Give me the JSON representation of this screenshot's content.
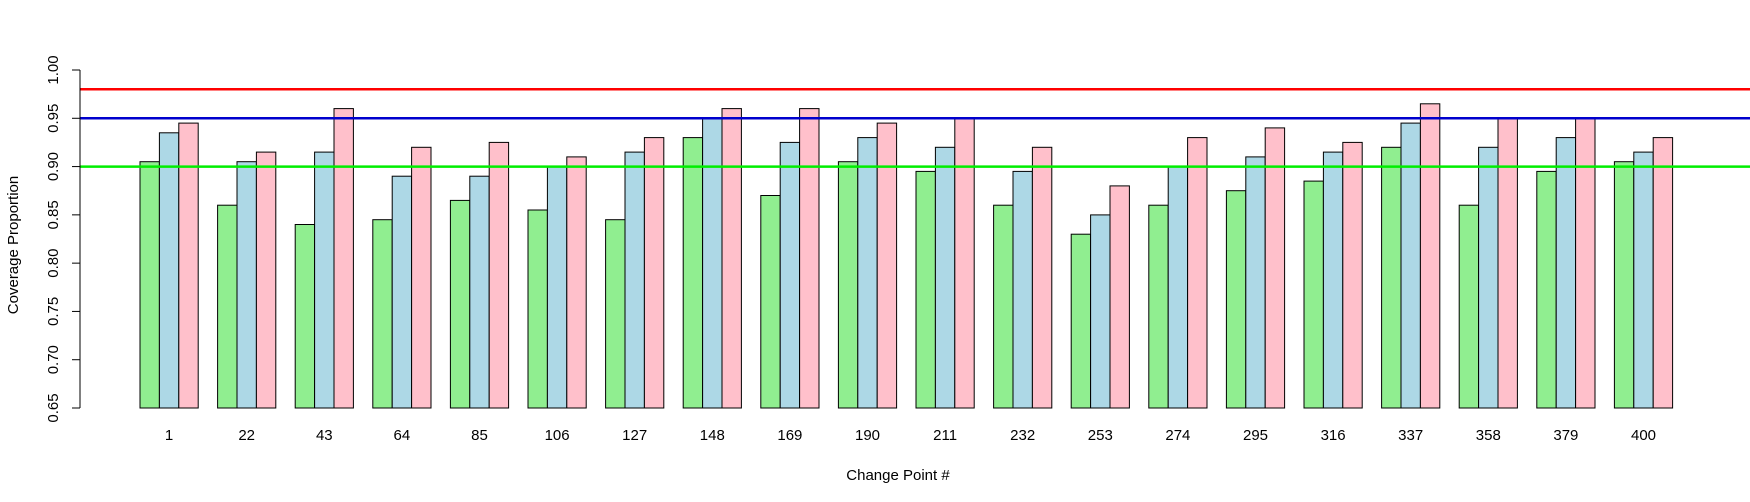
{
  "chart_data": {
    "type": "bar",
    "title": "",
    "xlabel": "Change Point #",
    "ylabel": "Coverage Proportion",
    "ylim": [
      0.65,
      1.0
    ],
    "yticks": [
      "0.65",
      "0.70",
      "0.75",
      "0.80",
      "0.85",
      "0.90",
      "0.95",
      "1.00"
    ],
    "categories": [
      "1",
      "22",
      "43",
      "64",
      "85",
      "106",
      "127",
      "148",
      "169",
      "190",
      "211",
      "232",
      "253",
      "274",
      "295",
      "316",
      "337",
      "358",
      "379",
      "400"
    ],
    "series": [
      {
        "color": "#90EE90",
        "values": [
          0.905,
          0.86,
          0.84,
          0.845,
          0.865,
          0.855,
          0.845,
          0.93,
          0.87,
          0.905,
          0.895,
          0.86,
          0.83,
          0.86,
          0.875,
          0.885,
          0.92,
          0.86,
          0.895,
          0.905
        ]
      },
      {
        "color": "#ADD8E6",
        "values": [
          0.935,
          0.905,
          0.915,
          0.89,
          0.89,
          0.9,
          0.915,
          0.95,
          0.925,
          0.93,
          0.92,
          0.895,
          0.85,
          0.9,
          0.91,
          0.915,
          0.945,
          0.92,
          0.93,
          0.915
        ]
      },
      {
        "color": "#FFC0CB",
        "values": [
          0.945,
          0.915,
          0.96,
          0.92,
          0.925,
          0.91,
          0.93,
          0.96,
          0.96,
          0.945,
          0.95,
          0.92,
          0.88,
          0.93,
          0.94,
          0.925,
          0.965,
          0.95,
          0.95,
          0.93
        ]
      }
    ],
    "reference_lines": [
      {
        "value": 0.98,
        "color": "#FF0000"
      },
      {
        "value": 0.95,
        "color": "#0000CD"
      },
      {
        "value": 0.9,
        "color": "#00EE00"
      }
    ],
    "grid": false,
    "legend": "none"
  }
}
